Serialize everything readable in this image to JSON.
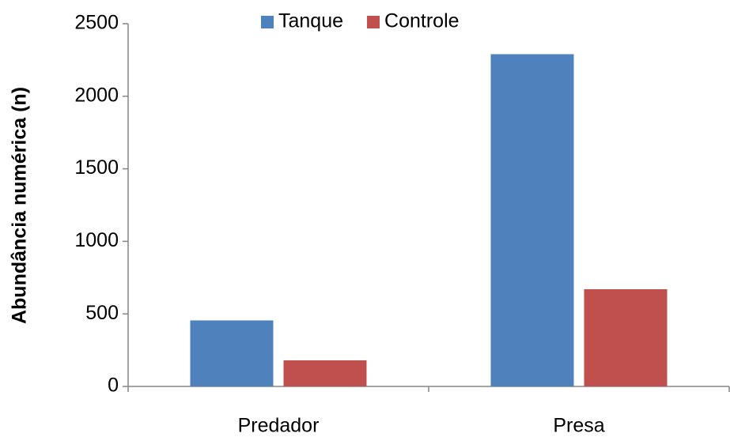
{
  "chart_data": {
    "type": "bar",
    "y_label": "Abundância numérica (n)",
    "categories": [
      "Predador",
      "Presa"
    ],
    "series": [
      {
        "name": "Tanque",
        "color": "#4f81bd",
        "values": [
          455,
          2290
        ]
      },
      {
        "name": "Controle",
        "color": "#c0504d",
        "values": [
          180,
          670
        ]
      }
    ],
    "ylim": [
      0,
      2500
    ],
    "yticks": [
      0,
      500,
      1000,
      1500,
      2000,
      2500
    ],
    "grid": false,
    "legend": "top"
  }
}
